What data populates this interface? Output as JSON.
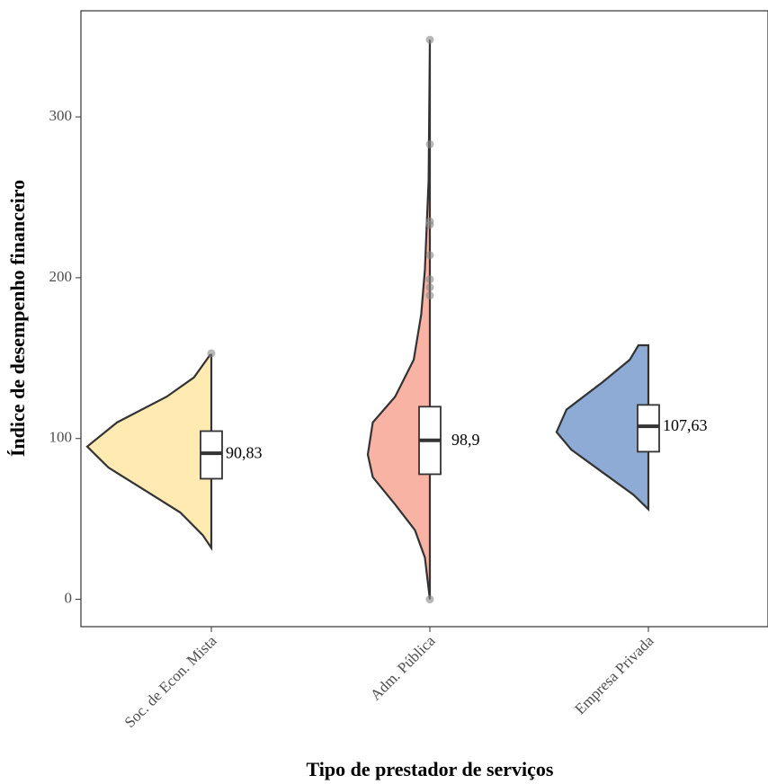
{
  "chart_data": {
    "type": "violin",
    "x_label": "Tipo de prestador de serviços",
    "y_label": "Índice de desempenho financeiro",
    "categories": [
      "Soc. de Econ. Mista",
      "Adm. Pública",
      "Empresa Privada"
    ],
    "ylim": [
      -17,
      366
    ],
    "yticks": [
      0,
      100,
      200,
      300
    ],
    "groups": [
      {
        "color": "#ffeab2",
        "violin": {
          "y": [
            32,
            40,
            54,
            68,
            82,
            95,
            110,
            126,
            138,
            152
          ],
          "density": [
            0,
            0.07,
            0.25,
            0.54,
            0.83,
            1.0,
            0.76,
            0.36,
            0.14,
            0.01
          ]
        },
        "box": {
          "q1": 75,
          "median": 90.83,
          "q3": 104.6
        },
        "median_label": "90,83",
        "outliers": [
          153
        ]
      },
      {
        "color": "#f9b3a5",
        "violin": {
          "y": [
            0,
            26,
            43,
            59,
            76,
            90,
            110,
            126,
            149,
            177,
            205,
            261,
            348
          ],
          "density": [
            0,
            0.04,
            0.12,
            0.28,
            0.46,
            0.5,
            0.46,
            0.28,
            0.13,
            0.07,
            0.04,
            0.01,
            0
          ]
        },
        "box": {
          "q1": 77.8,
          "median": 98.9,
          "q3": 119.8
        },
        "median_label": "98,9",
        "outliers": [
          348,
          283,
          235,
          233,
          214,
          199,
          194,
          189,
          0
        ]
      },
      {
        "color": "#8eabd6",
        "violin": {
          "y": [
            56,
            65,
            79,
            93,
            104,
            118,
            135,
            149,
            158
          ],
          "density": [
            0,
            0.12,
            0.37,
            0.62,
            0.74,
            0.66,
            0.37,
            0.15,
            0.08
          ]
        },
        "box": {
          "q1": 91.8,
          "median": 107.63,
          "q3": 120.9
        },
        "median_label": "107,63",
        "outliers": []
      }
    ]
  }
}
